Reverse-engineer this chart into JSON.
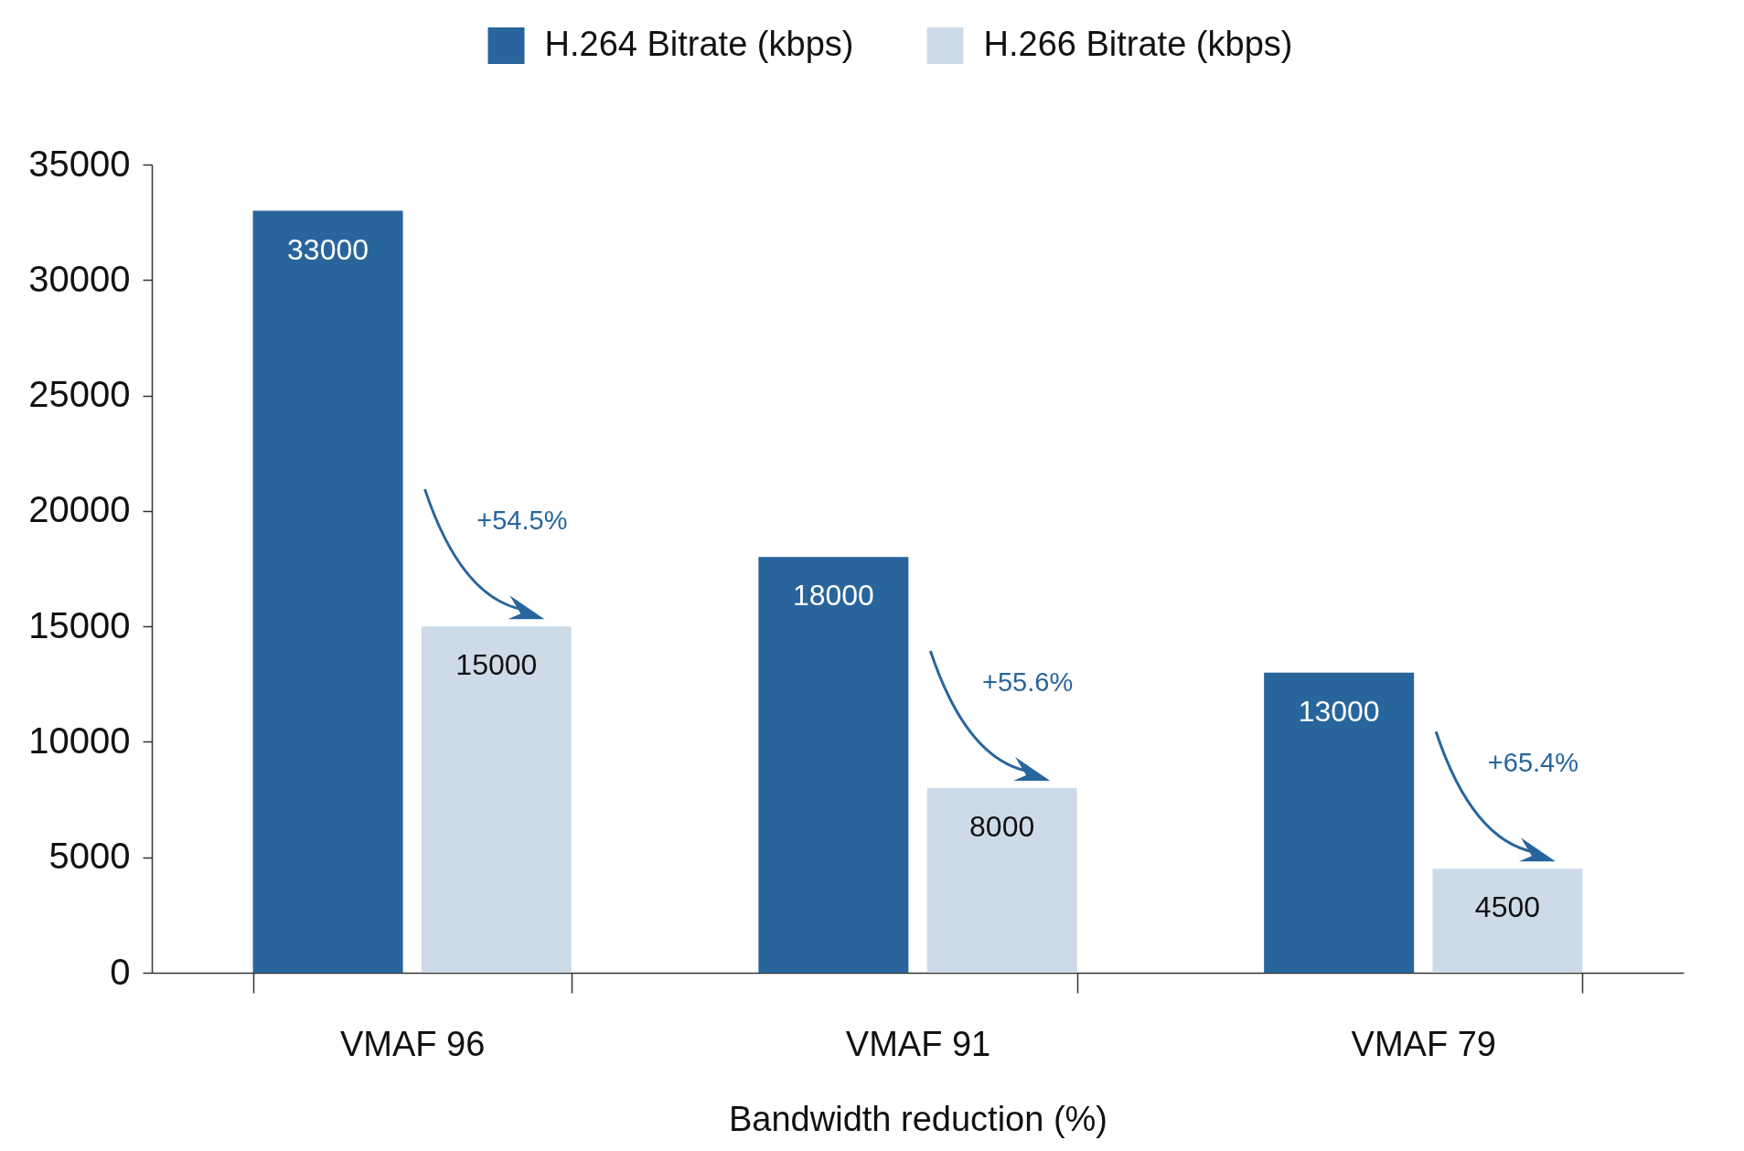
{
  "chart_data": {
    "type": "bar",
    "xlabel": "Bandwidth reduction (%)",
    "categories": [
      "VMAF 96",
      "VMAF 91",
      "VMAF 79"
    ],
    "series": [
      {
        "name": "H.264 Bitrate (kbps)",
        "color": "#27659c",
        "values": [
          33000,
          18000,
          13000
        ]
      },
      {
        "name": "H.266 Bitrate (kbps)",
        "color": "#cddbe8",
        "values": [
          15000,
          8000,
          4500
        ]
      }
    ],
    "ylim": [
      0,
      35000
    ],
    "yticks": [
      0,
      5000,
      10000,
      15000,
      20000,
      25000,
      30000,
      35000
    ],
    "data_labels": true,
    "legend": "top",
    "grid": false,
    "annotations": [
      "+54.5%",
      "+55.6%",
      "+65.4%"
    ]
  }
}
